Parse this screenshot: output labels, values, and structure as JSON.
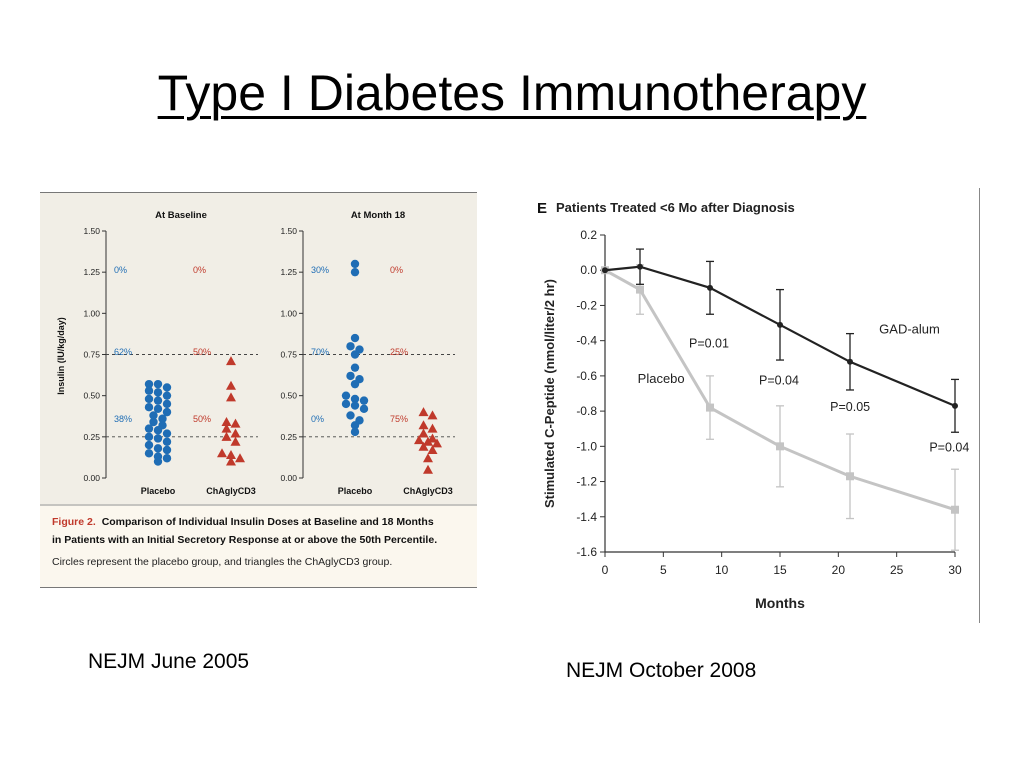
{
  "slide": {
    "title": "Type I  Diabetes Immunotherapy",
    "caption_left": "NEJM June 2005",
    "caption_right": "NEJM October 2008"
  },
  "figure_left": {
    "caption_label": "Figure 2.",
    "caption_bold_1": "Comparison of Individual Insulin Doses at Baseline and 18 Months",
    "caption_bold_2": "in Patients with an Initial Secretory Response at or above the 50th Percentile.",
    "caption_plain": "Circles represent the placebo group, and triangles the ChAglyCD3 group."
  },
  "colors": {
    "placebo_blue": "#1f6db5",
    "chaglycd3_red": "#c0392b",
    "caption_red": "#c0392b",
    "gad_dark": "#222222",
    "placebo_gray": "#c4c4c4"
  },
  "chart_data": [
    {
      "type": "scatter",
      "title": "At Baseline",
      "ylabel": "Insulin (IU/kg/day)",
      "ylim": [
        0.0,
        1.5
      ],
      "yticks": [
        "0.00",
        "0.25",
        "0.50",
        "0.75",
        "1.00",
        "1.25",
        "1.50"
      ],
      "categories": [
        "Placebo",
        "ChAglyCD3"
      ],
      "reference_lines": [
        0.25,
        0.75
      ],
      "series": [
        {
          "category": "Placebo",
          "marker": "circle",
          "color": "#1f6db5",
          "values": [
            0.57,
            0.57,
            0.55,
            0.53,
            0.52,
            0.5,
            0.48,
            0.47,
            0.45,
            0.43,
            0.42,
            0.4,
            0.38,
            0.36,
            0.34,
            0.32,
            0.3,
            0.29,
            0.27,
            0.25,
            0.24,
            0.22,
            0.2,
            0.18,
            0.17,
            0.15,
            0.13,
            0.12,
            0.1
          ],
          "percent_labels": [
            "0%",
            "62%",
            "38%"
          ]
        },
        {
          "category": "ChAglyCD3",
          "marker": "triangle",
          "color": "#c0392b",
          "values": [
            0.71,
            0.56,
            0.49,
            0.34,
            0.33,
            0.3,
            0.27,
            0.25,
            0.22,
            0.15,
            0.14,
            0.12,
            0.1
          ],
          "percent_labels": [
            "0%",
            "50%",
            "50%"
          ]
        }
      ]
    },
    {
      "type": "scatter",
      "title": "At Month 18",
      "ylim": [
        0.0,
        1.5
      ],
      "yticks": [
        "0.00",
        "0.25",
        "0.50",
        "0.75",
        "1.00",
        "1.25",
        "1.50"
      ],
      "categories": [
        "Placebo",
        "ChAglyCD3"
      ],
      "reference_lines": [
        0.25,
        0.75
      ],
      "series": [
        {
          "category": "Placebo",
          "marker": "circle",
          "color": "#1f6db5",
          "values": [
            1.3,
            1.25,
            0.85,
            0.8,
            0.78,
            0.75,
            0.67,
            0.62,
            0.6,
            0.57,
            0.5,
            0.48,
            0.47,
            0.45,
            0.44,
            0.42,
            0.38,
            0.35,
            0.32,
            0.28
          ],
          "percent_labels": [
            "30%",
            "70%",
            "0%"
          ]
        },
        {
          "category": "ChAglyCD3",
          "marker": "triangle",
          "color": "#c0392b",
          "values": [
            0.4,
            0.38,
            0.32,
            0.3,
            0.27,
            0.24,
            0.23,
            0.22,
            0.21,
            0.19,
            0.17,
            0.12,
            0.05
          ],
          "percent_labels": [
            "0%",
            "25%",
            "75%"
          ]
        }
      ]
    },
    {
      "type": "line",
      "panel_letter": "E",
      "title": "Patients Treated <6 Mo after Diagnosis",
      "xlabel": "Months",
      "ylabel": "Stimulated C-Peptide (nmol/liter/2 hr)",
      "xlim": [
        0,
        30
      ],
      "ylim": [
        -1.6,
        0.2
      ],
      "xticks": [
        "0",
        "5",
        "10",
        "15",
        "20",
        "25",
        "30"
      ],
      "yticks": [
        "0.2",
        "0.0",
        "-0.2",
        "-0.4",
        "-0.6",
        "-0.8",
        "-1.0",
        "-1.2",
        "-1.4",
        "-1.6"
      ],
      "series": [
        {
          "name": "GAD-alum",
          "color": "#222222",
          "x": [
            0,
            3,
            9,
            15,
            21,
            30
          ],
          "y": [
            0.0,
            0.02,
            -0.1,
            -0.31,
            -0.52,
            -0.77
          ],
          "err": [
            0,
            0.1,
            0.15,
            0.2,
            0.16,
            0.15
          ]
        },
        {
          "name": "Placebo",
          "color": "#c4c4c4",
          "x": [
            0,
            3,
            9,
            15,
            21,
            30
          ],
          "y": [
            0.0,
            -0.11,
            -0.78,
            -1.0,
            -1.17,
            -1.36
          ],
          "err": [
            0,
            0.14,
            0.18,
            0.23,
            0.24,
            0.23
          ]
        }
      ],
      "annotations": [
        "P=0.01",
        "P=0.04",
        "P=0.05",
        "P=0.04"
      ]
    }
  ]
}
